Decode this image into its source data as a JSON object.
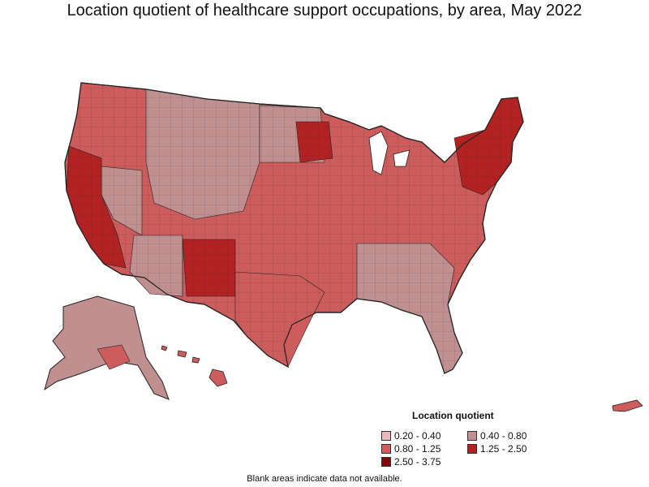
{
  "title": "Location quotient of healthcare support occupations, by area, May 2022",
  "legend": {
    "title": "Location quotient",
    "classes": [
      {
        "label": "0.20 - 0.40",
        "color": "#e9b8b8"
      },
      {
        "label": "0.40 - 0.80",
        "color": "#c08f8f"
      },
      {
        "label": "0.80 - 1.25",
        "color": "#cd5c5c"
      },
      {
        "label": "1.25 - 2.50",
        "color": "#b22222"
      },
      {
        "label": "2.50 - 3.75",
        "color": "#7d0a0a"
      }
    ]
  },
  "footnote": "Blank areas indicate data not available.",
  "colors": {
    "border": "#222222",
    "background": "#ffffff"
  }
}
